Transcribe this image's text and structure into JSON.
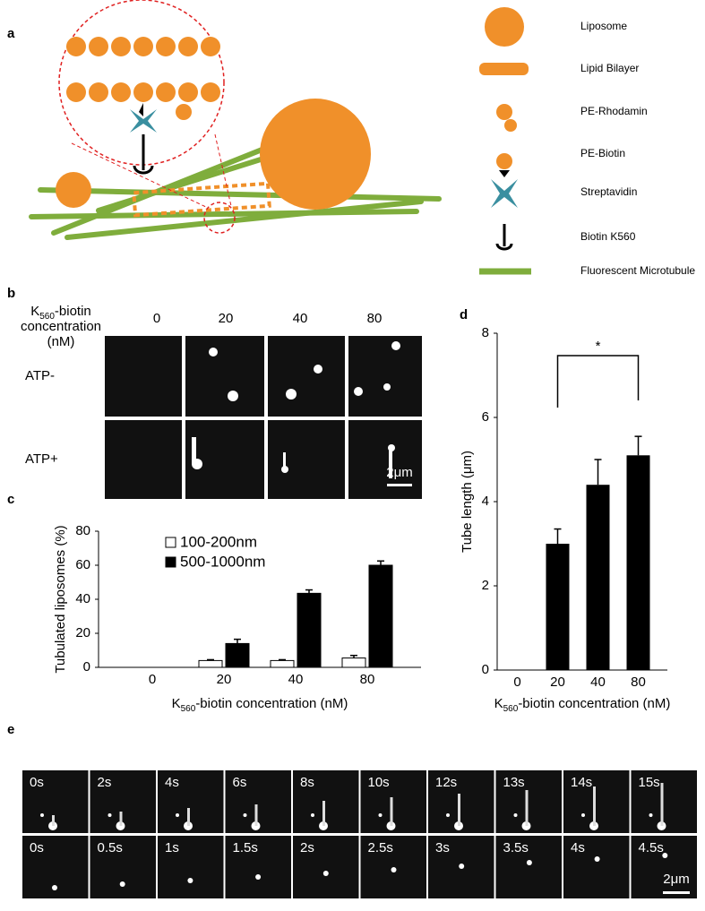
{
  "figure": {
    "panel_labels": [
      "a",
      "b",
      "c",
      "d",
      "e"
    ],
    "legend_a": [
      "Liposome",
      "Lipid Bilayer",
      "PE-Rhodamin",
      "PE-Biotin",
      "Streptavidin",
      "Biotin K560",
      "Fluorescent Microtubule"
    ],
    "panel_b": {
      "conc_label": {
        "k": "K",
        "sub": "560",
        "rest": "-biotin",
        "line2": "concentration",
        "line3": "(nM)"
      },
      "columns": [
        "0",
        "20",
        "40",
        "80"
      ],
      "rows": [
        "ATP-",
        "ATP+"
      ],
      "scale_bar": "2μm"
    },
    "panel_e": {
      "row1": [
        "0s",
        "2s",
        "4s",
        "6s",
        "8s",
        "10s",
        "12s",
        "13s",
        "14s",
        "15s"
      ],
      "row2": [
        "0s",
        "0.5s",
        "1s",
        "1.5s",
        "2s",
        "2.5s",
        "3s",
        "3.5s",
        "4s",
        "4.5s"
      ],
      "scale_bar": "2μm"
    }
  },
  "chart_data": [
    {
      "type": "grouped-bar",
      "ylabel": "Tubulated liposomes (%)",
      "xlabel": [
        "K",
        "560",
        "-biotin concentration (nM)"
      ],
      "categories": [
        "0",
        "20",
        "40",
        "80"
      ],
      "series": [
        {
          "name": "100-200nm",
          "color": "#ffffff",
          "values": [
            0,
            4,
            4,
            5.5
          ],
          "errors": [
            null,
            0.5,
            0.5,
            1.5
          ]
        },
        {
          "name": "500-1000nm",
          "color": "#000000",
          "values": [
            0,
            14,
            43.5,
            60
          ],
          "errors": [
            null,
            2.5,
            2,
            2.5
          ]
        }
      ],
      "ylim": [
        0,
        80
      ],
      "yticks": [
        0,
        20,
        40,
        60,
        80
      ],
      "legend": "upper left"
    },
    {
      "type": "bar",
      "ylabel": "Tube length (μm)",
      "xlabel": [
        "K",
        "560",
        "-biotin concentration (nM)"
      ],
      "categories": [
        "0",
        "20",
        "40",
        "80"
      ],
      "values": [
        0,
        3,
        4.4,
        5.1
      ],
      "errors": [
        null,
        0.35,
        0.6,
        0.45
      ],
      "color": "#000000",
      "ylim": [
        0,
        8
      ],
      "yticks": [
        0,
        2,
        4,
        6,
        8
      ],
      "annotation": "*"
    }
  ]
}
